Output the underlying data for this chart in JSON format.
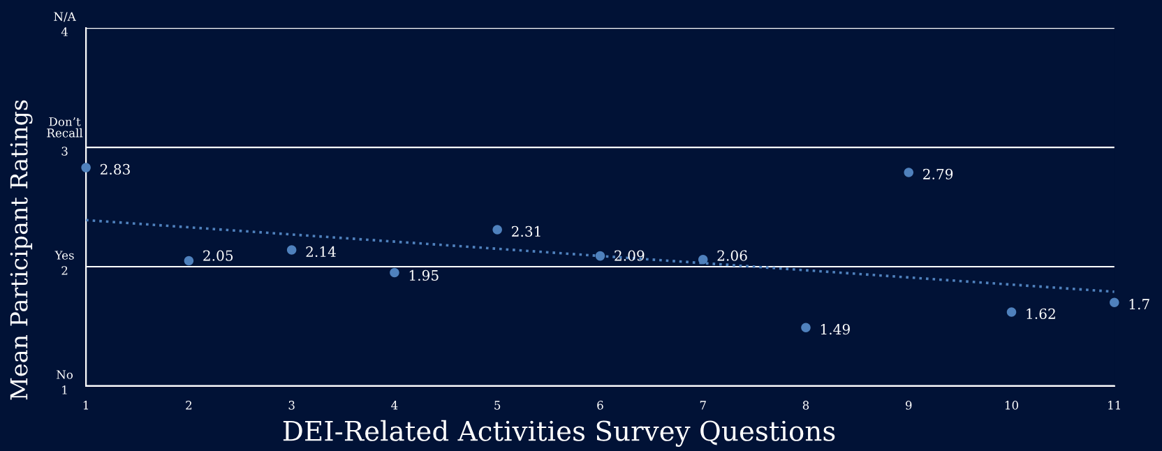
{
  "chart_data": {
    "type": "scatter",
    "xlabel": "DEI-Related Activities Survey Questions",
    "ylabel": "Mean Participant Ratings",
    "xlim": [
      1,
      11
    ],
    "xticks": [
      1,
      2,
      3,
      4,
      5,
      6,
      7,
      8,
      9,
      10,
      11
    ],
    "ylim": [
      1,
      4
    ],
    "yticks": [
      1,
      2,
      3,
      4
    ],
    "annotations": [
      "No",
      "Yes",
      "Don’t\nRecall",
      "N/A"
    ],
    "grid": "y",
    "marker": "circle",
    "x": [
      1,
      2,
      3,
      4,
      5,
      6,
      7,
      8,
      9,
      10,
      11
    ],
    "series": [
      {
        "color": "#4f81bd",
        "values": [
          2.83,
          2.05,
          2.14,
          1.95,
          2.31,
          2.09,
          2.06,
          1.49,
          2.79,
          1.62,
          1.7
        ],
        "value_labels": [
          "2.83",
          "2.05",
          "2.14",
          "1.95",
          "2.31",
          "2.09",
          "2.06",
          "1.49",
          "2.79",
          "1.62",
          "1.7"
        ]
      },
      {
        "type": "line",
        "color": "#4f81bd",
        "x": [
          1,
          11
        ],
        "values": [
          2.39,
          1.79
        ],
        "line_style": "dotted",
        "marker": "none"
      }
    ]
  }
}
